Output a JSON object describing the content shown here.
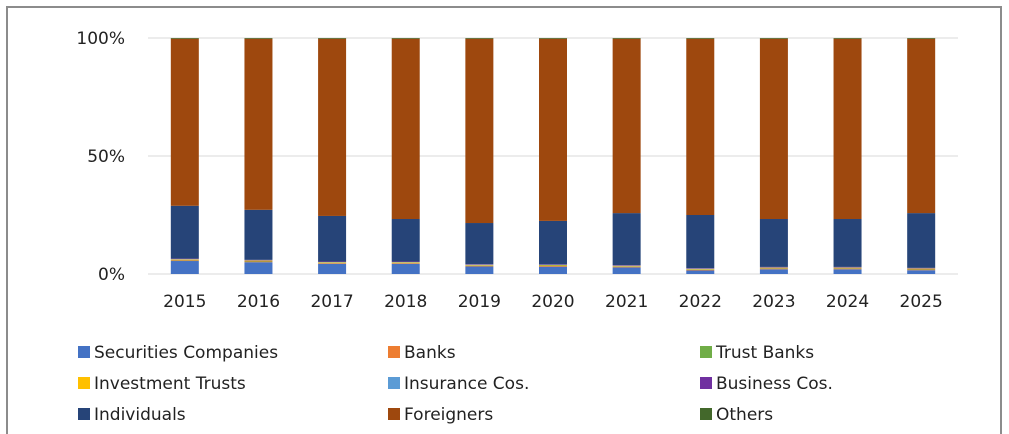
{
  "chart_data": {
    "type": "stacked_bar",
    "categories": [
      "2015",
      "2016",
      "2017",
      "2018",
      "2019",
      "2020",
      "2021",
      "2022",
      "2023",
      "2024",
      "2025"
    ],
    "series": [
      {
        "name": "Securities Companies",
        "color": "#4472c4",
        "values": [
          5.5,
          5.0,
          4.3,
          4.3,
          3.2,
          3.1,
          2.8,
          1.5,
          2.0,
          2.0,
          1.6
        ]
      },
      {
        "name": "Banks",
        "color": "#ed7d31",
        "values": [
          0.3,
          0.3,
          0.3,
          0.3,
          0.3,
          0.3,
          0.3,
          0.3,
          0.3,
          0.3,
          0.3
        ]
      },
      {
        "name": "Trust Banks",
        "color": "#70ad47",
        "values": [
          0.2,
          0.2,
          0.2,
          0.2,
          0.2,
          0.2,
          0.2,
          0.2,
          0.2,
          0.2,
          0.2
        ]
      },
      {
        "name": "Investment Trusts",
        "color": "#ffc000",
        "values": [
          0.2,
          0.2,
          0.2,
          0.2,
          0.2,
          0.2,
          0.2,
          0.2,
          0.2,
          0.2,
          0.2
        ]
      },
      {
        "name": "Insurance Cos.",
        "color": "#5b9bd5",
        "values": [
          0.1,
          0.1,
          0.1,
          0.1,
          0.1,
          0.1,
          0.1,
          0.1,
          0.1,
          0.1,
          0.1
        ]
      },
      {
        "name": "Business Cos.",
        "color": "#7030a0",
        "values": [
          0.2,
          0.2,
          0.2,
          0.2,
          0.2,
          0.2,
          0.2,
          0.2,
          0.2,
          0.2,
          0.2
        ]
      },
      {
        "name": "Individuals",
        "color": "#264478",
        "values": [
          22.4,
          21.2,
          19.3,
          18.0,
          17.4,
          18.4,
          22.0,
          22.5,
          20.3,
          20.3,
          23.2
        ]
      },
      {
        "name": "Foreigners",
        "color": "#9e480e",
        "values": [
          70.8,
          72.5,
          75.1,
          76.4,
          78.1,
          77.2,
          73.9,
          74.7,
          76.4,
          76.4,
          73.9
        ]
      },
      {
        "name": "Others",
        "color": "#43682b",
        "values": [
          0.3,
          0.3,
          0.3,
          0.3,
          0.3,
          0.3,
          0.3,
          0.3,
          0.3,
          0.3,
          0.3
        ]
      }
    ],
    "ylim": [
      0,
      100
    ],
    "yticks": [
      {
        "value": 0,
        "label": "0%"
      },
      {
        "value": 50,
        "label": "50%"
      },
      {
        "value": 100,
        "label": "100%"
      }
    ],
    "grid": true,
    "legend": "bottom"
  }
}
